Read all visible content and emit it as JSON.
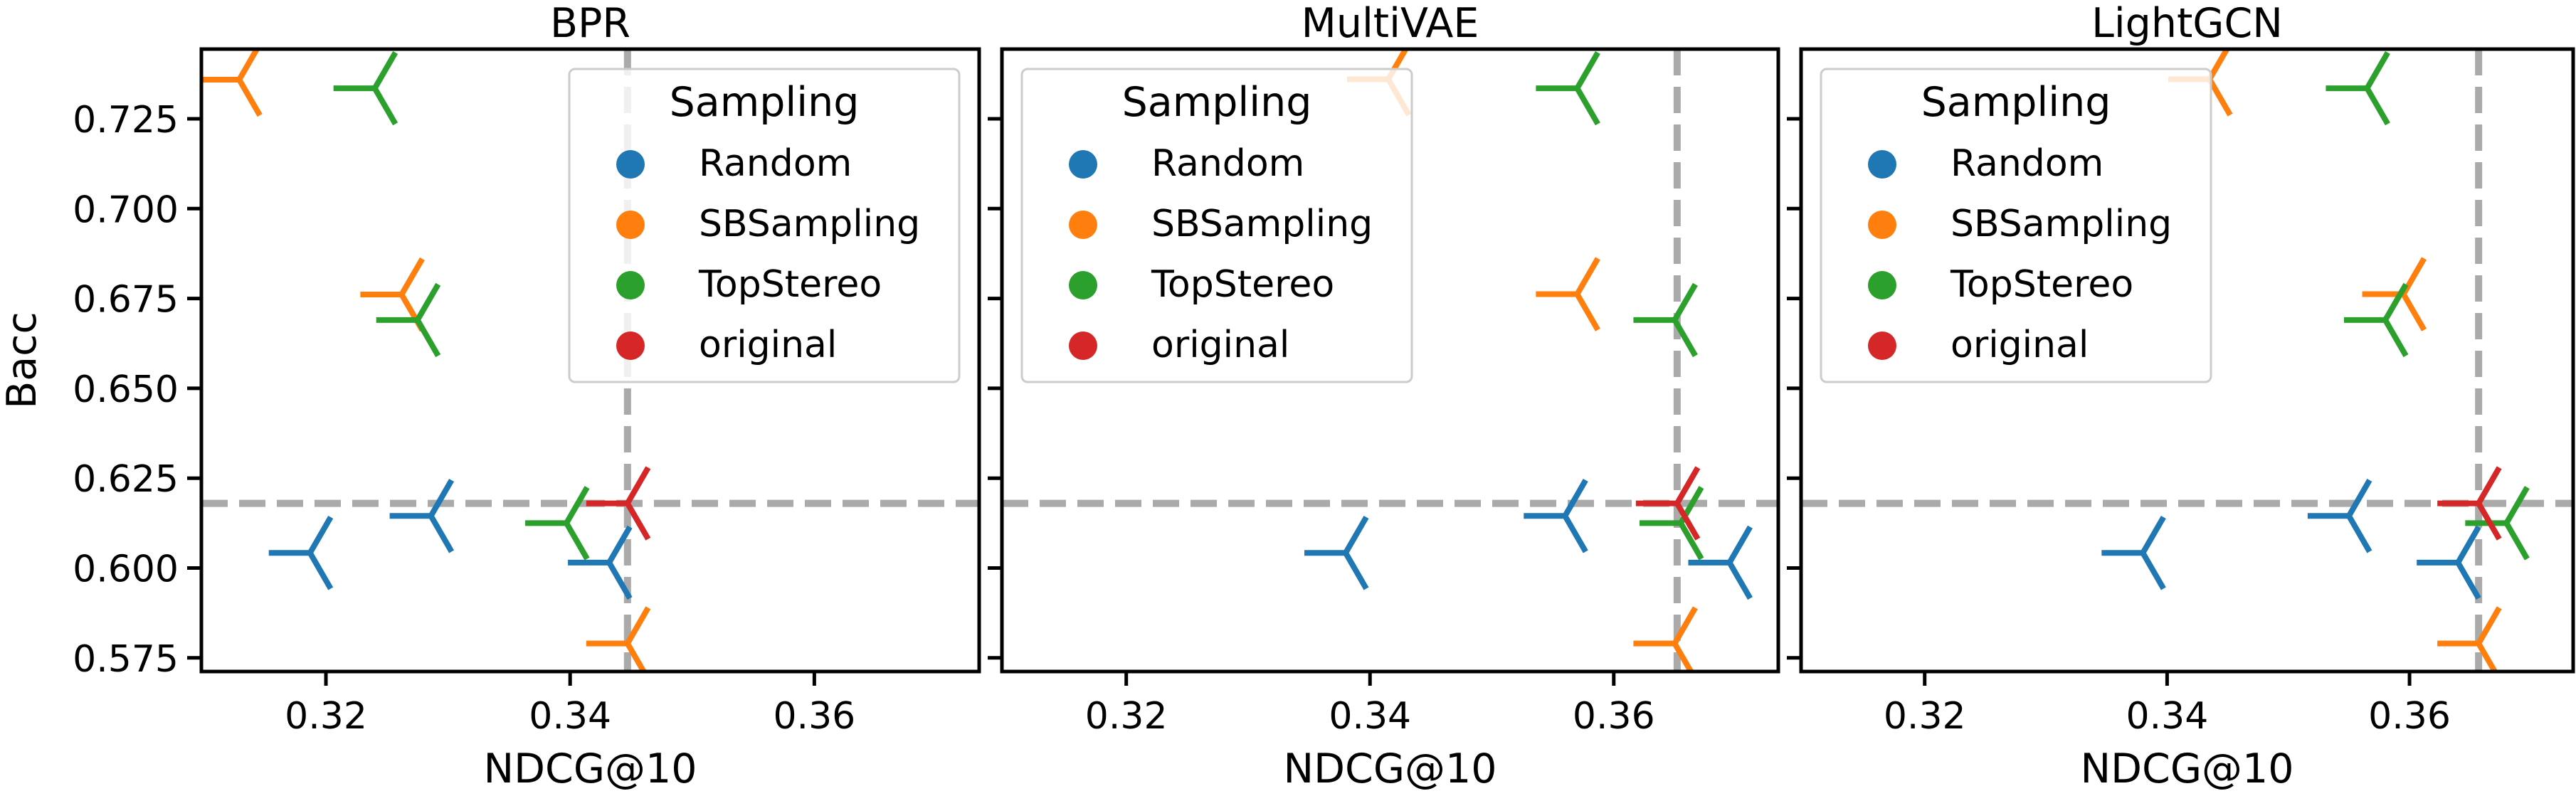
{
  "chart_data": [
    {
      "type": "scatter",
      "title": "BPR",
      "xlabel": "NDCG@10",
      "ylabel": "Bacc",
      "xlim": [
        0.3098,
        0.3735
      ],
      "ylim": [
        0.5712,
        0.7444
      ],
      "xticks": [
        0.32,
        0.34,
        0.36
      ],
      "xtick_labels": [
        "0.32",
        "0.34",
        "0.36"
      ],
      "yticks": [
        0.575,
        0.6,
        0.625,
        0.65,
        0.675,
        0.7,
        0.725
      ],
      "ytick_labels": [
        "0.575",
        "0.600",
        "0.625",
        "0.650",
        "0.675",
        "0.700",
        "0.725"
      ],
      "reference_lines": {
        "x": 0.3447,
        "y": 0.618
      },
      "legend": {
        "title": "Sampling",
        "position": "upper right"
      },
      "series": [
        {
          "name": "Random",
          "color": "#1f77b4",
          "points": [
            [
              0.3187,
              0.6042
            ],
            [
              0.3286,
              0.6145
            ],
            [
              0.3432,
              0.6015
            ]
          ]
        },
        {
          "name": "SBSampling",
          "color": "#ff7f0e",
          "points": [
            [
              0.3129,
              0.7359
            ],
            [
              0.3262,
              0.6761
            ],
            [
              0.3447,
              0.579
            ]
          ]
        },
        {
          "name": "TopStereo",
          "color": "#2ca02c",
          "points": [
            [
              0.324,
              0.7335
            ],
            [
              0.3275,
              0.669
            ],
            [
              0.3397,
              0.6125
            ]
          ]
        },
        {
          "name": "original",
          "color": "#d62728",
          "points": [
            [
              0.3447,
              0.618
            ]
          ]
        }
      ]
    },
    {
      "type": "scatter",
      "title": "MultiVAE",
      "xlabel": "NDCG@10",
      "ylabel": "",
      "xlim": [
        0.3098,
        0.3735
      ],
      "ylim": [
        0.5712,
        0.7444
      ],
      "xticks": [
        0.32,
        0.34,
        0.36
      ],
      "xtick_labels": [
        "0.32",
        "0.34",
        "0.36"
      ],
      "yticks": [
        0.575,
        0.6,
        0.625,
        0.65,
        0.675,
        0.7,
        0.725
      ],
      "ytick_labels": [],
      "reference_lines": {
        "x": 0.3652,
        "y": 0.618
      },
      "legend": {
        "title": "Sampling",
        "position": "upper left"
      },
      "series": [
        {
          "name": "Random",
          "color": "#1f77b4",
          "points": [
            [
              0.338,
              0.6042
            ],
            [
              0.356,
              0.6145
            ],
            [
              0.3695,
              0.6015
            ]
          ]
        },
        {
          "name": "SBSampling",
          "color": "#ff7f0e",
          "points": [
            [
              0.3415,
              0.736
            ],
            [
              0.357,
              0.6762
            ],
            [
              0.365,
              0.579
            ]
          ]
        },
        {
          "name": "TopStereo",
          "color": "#2ca02c",
          "points": [
            [
              0.357,
              0.7335
            ],
            [
              0.365,
              0.669
            ],
            [
              0.3655,
              0.6125
            ]
          ]
        },
        {
          "name": "original",
          "color": "#d62728",
          "points": [
            [
              0.3652,
              0.618
            ]
          ]
        }
      ]
    },
    {
      "type": "scatter",
      "title": "LightGCN",
      "xlabel": "NDCG@10",
      "ylabel": "",
      "xlim": [
        0.3098,
        0.3735
      ],
      "ylim": [
        0.5712,
        0.7444
      ],
      "xticks": [
        0.32,
        0.34,
        0.36
      ],
      "xtick_labels": [
        "0.32",
        "0.34",
        "0.36"
      ],
      "yticks": [
        0.575,
        0.6,
        0.625,
        0.65,
        0.675,
        0.7,
        0.725
      ],
      "ytick_labels": [],
      "reference_lines": {
        "x": 0.3657,
        "y": 0.618
      },
      "legend": {
        "title": "Sampling",
        "position": "upper left"
      },
      "series": [
        {
          "name": "Random",
          "color": "#1f77b4",
          "points": [
            [
              0.338,
              0.6042
            ],
            [
              0.355,
              0.6145
            ],
            [
              0.364,
              0.6015
            ]
          ]
        },
        {
          "name": "SBSampling",
          "color": "#ff7f0e",
          "points": [
            [
              0.3435,
              0.736
            ],
            [
              0.3595,
              0.6762
            ],
            [
              0.3657,
              0.579
            ]
          ]
        },
        {
          "name": "TopStereo",
          "color": "#2ca02c",
          "points": [
            [
              0.3565,
              0.7335
            ],
            [
              0.358,
              0.669
            ],
            [
              0.368,
              0.6125
            ]
          ]
        },
        {
          "name": "original",
          "color": "#d62728",
          "points": [
            [
              0.3657,
              0.618
            ]
          ]
        }
      ]
    }
  ]
}
